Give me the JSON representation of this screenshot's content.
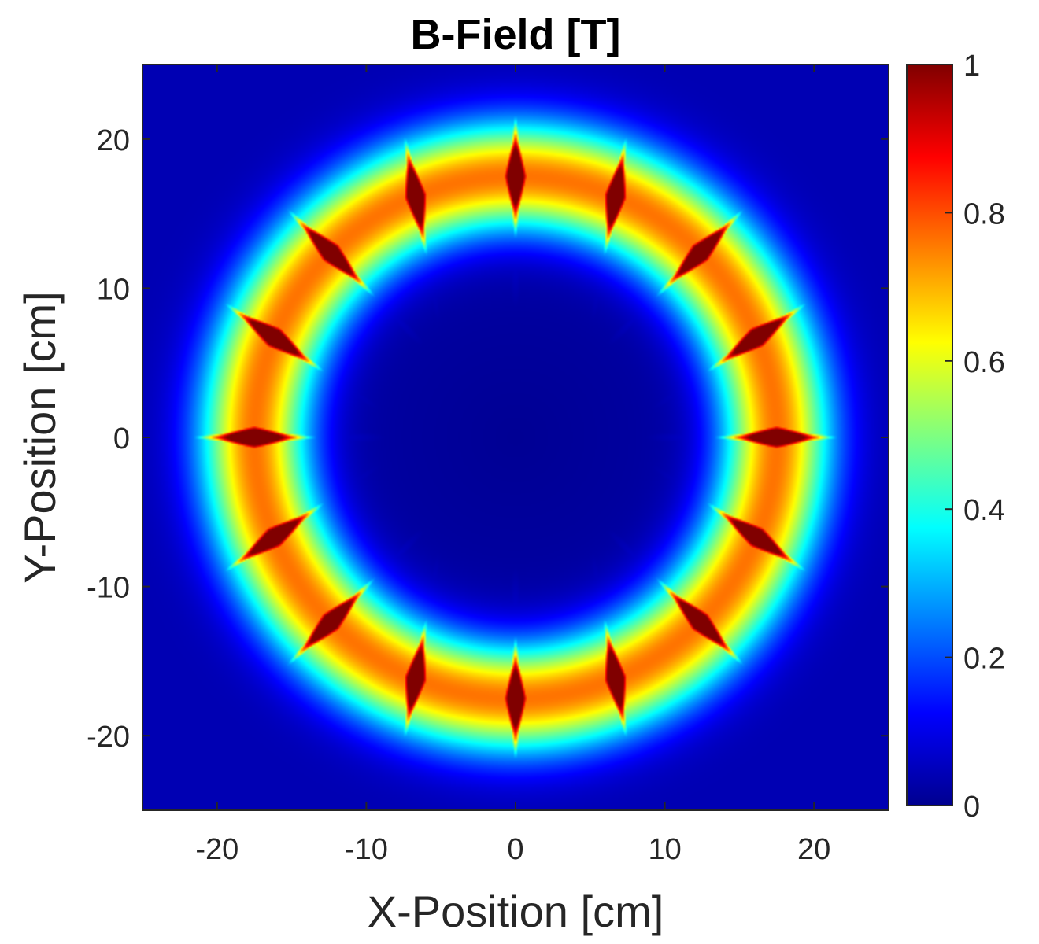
{
  "chart_data": {
    "type": "heatmap",
    "title": "B-Field [T]",
    "xlabel": "X-Position [cm]",
    "ylabel": "Y-Position [cm]",
    "xlim": [
      -25,
      25
    ],
    "ylim": [
      -25,
      25
    ],
    "xticks": [
      -20,
      -10,
      0,
      10,
      20
    ],
    "yticks": [
      -20,
      -10,
      0,
      10,
      20
    ],
    "colorbar": {
      "range": [
        0,
        1
      ],
      "ticks": [
        0,
        0.2,
        0.4,
        0.6,
        0.8,
        1
      ],
      "tick_labels": [
        "0",
        "0.2",
        "0.4",
        "0.6",
        "0.8",
        "1"
      ],
      "colormap": "jet"
    },
    "field": {
      "magnet_count": 16,
      "ring_radius_cm": 17.5,
      "magnet_length_cm": 5.5,
      "magnet_width_cm": 1.6,
      "magnet_peak_T": 1.0,
      "ring_field_T": 0.72,
      "center_field_T": 0.02,
      "far_field_T": 0.05
    }
  }
}
